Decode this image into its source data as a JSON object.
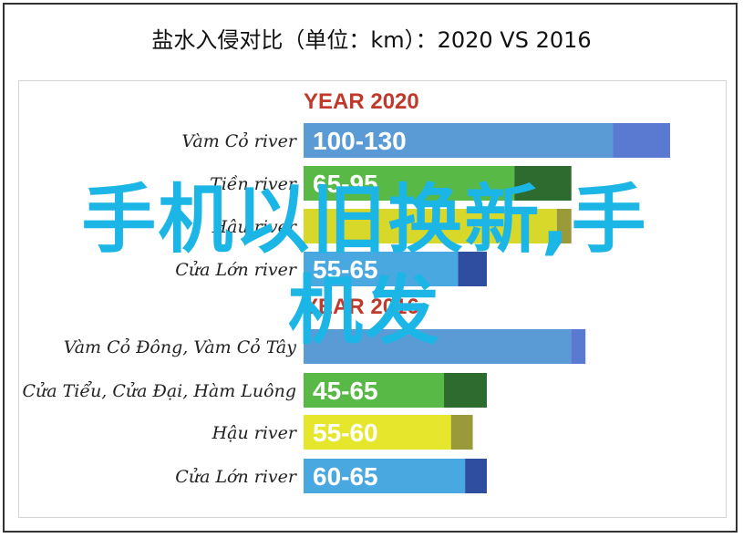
{
  "header": {
    "title": "盐水入侵对比（单位：km）：2020 VS 2016"
  },
  "overlay": {
    "line1": "手机以旧换新,手",
    "line2": "机发"
  },
  "chart_data": [
    {
      "type": "bar",
      "title": "YEAR 2020",
      "categories": [
        "Vàm Cỏ river",
        "Tiền river",
        "Hậu river",
        "Cửa Lớn river"
      ],
      "value_labels": [
        "100-130",
        "65-95",
        "",
        "55-65"
      ],
      "ranges": [
        [
          100,
          130
        ],
        [
          65,
          95
        ],
        [
          null,
          null
        ],
        [
          55,
          65
        ]
      ],
      "colors": [
        "#5b9bd5",
        "#58b947",
        "#d8d82a",
        "#4aa8e0"
      ],
      "tail_colors": [
        "#5a79d0",
        "#2e6b2e",
        "#9a9a3a",
        "#2f4ea0"
      ]
    },
    {
      "type": "bar",
      "title": "YEAR 2016",
      "categories": [
        "Vàm Cỏ Đông, Vàm Cỏ Tây",
        "Cửa Tiểu, Cửa Đại, Hàm Luông",
        "Hậu river",
        "Cửa Lớn river"
      ],
      "value_labels": [
        "",
        "45-65",
        "55-60",
        "60-65"
      ],
      "ranges": [
        [
          null,
          null
        ],
        [
          45,
          65
        ],
        [
          55,
          60
        ],
        [
          60,
          65
        ]
      ],
      "colors": [
        "#5b9bd5",
        "#58b947",
        "#e6e62c",
        "#4aa8e0"
      ],
      "tail_colors": [
        "#5a79d0",
        "#2e6b2e",
        "#9a9a3a",
        "#2f4ea0"
      ]
    }
  ],
  "colors": {
    "year_label": "#c0392b",
    "overlay_text": "#1cb6e6",
    "bar_text": "#ffffff"
  }
}
